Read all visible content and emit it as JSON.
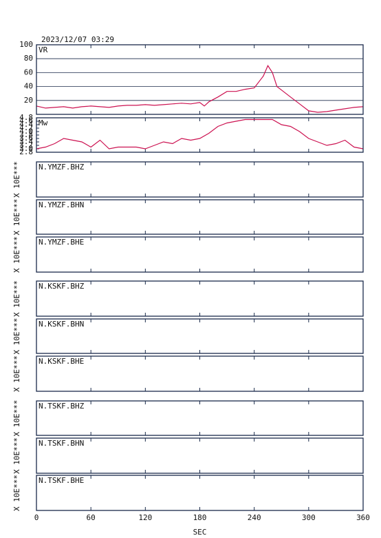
{
  "chart_data": [
    {
      "type": "line",
      "title": "2023/12/07 03:29",
      "label": "VR",
      "color": "#cc1150",
      "x": [
        0,
        10,
        20,
        30,
        40,
        50,
        60,
        70,
        80,
        90,
        100,
        110,
        120,
        130,
        140,
        150,
        160,
        170,
        180,
        185,
        190,
        200,
        210,
        220,
        230,
        240,
        250,
        255,
        260,
        265,
        270,
        280,
        290,
        300,
        310,
        320,
        330,
        340,
        350,
        360
      ],
      "values": [
        12,
        9,
        10,
        11,
        9,
        11,
        12,
        11,
        10,
        12,
        13,
        13,
        14,
        13,
        14,
        15,
        16,
        15,
        17,
        12,
        18,
        25,
        33,
        33,
        36,
        38,
        55,
        70,
        60,
        40,
        35,
        25,
        15,
        5,
        3,
        4,
        6,
        8,
        10,
        11
      ],
      "xlim": [
        0,
        360
      ],
      "xticks": [
        0,
        60,
        120,
        180,
        240,
        300,
        360
      ],
      "ylim": [
        0,
        100
      ],
      "yticks": [
        20,
        40,
        60,
        80,
        100
      ],
      "grid": true
    },
    {
      "type": "line",
      "label": "Mw",
      "color": "#cc1150",
      "x": [
        0,
        10,
        20,
        30,
        40,
        50,
        60,
        70,
        80,
        90,
        100,
        110,
        120,
        130,
        140,
        150,
        160,
        170,
        180,
        190,
        200,
        210,
        220,
        230,
        240,
        250,
        260,
        270,
        280,
        290,
        300,
        310,
        320,
        330,
        340,
        350,
        360
      ],
      "values": [
        3.0,
        3.1,
        3.3,
        3.6,
        3.5,
        3.4,
        3.1,
        3.5,
        3.0,
        3.1,
        3.1,
        3.1,
        3.0,
        3.2,
        3.4,
        3.3,
        3.6,
        3.5,
        3.6,
        3.9,
        4.3,
        4.5,
        4.6,
        4.7,
        4.7,
        4.7,
        4.7,
        4.4,
        4.3,
        4.0,
        3.6,
        3.4,
        3.2,
        3.3,
        3.5,
        3.1,
        3.0
      ],
      "xlim": [
        0,
        360
      ],
      "xticks": [
        0,
        60,
        120,
        180,
        240,
        300,
        360
      ],
      "ylim": [
        2.8,
        4.8
      ],
      "yticks": [
        {
          "value": 2.8,
          "label": "2.8"
        },
        {
          "value": 3,
          "label": "3.0"
        },
        3.2,
        3.4,
        3.6,
        3.8,
        {
          "value": 4,
          "label": "4.0"
        },
        4.2,
        4.4,
        4.6,
        4.8
      ]
    },
    {
      "type": "empty",
      "label": "N.YMZF.BHZ",
      "ylabel": "X 10E***",
      "xlim": [
        0,
        360
      ],
      "xticks": [
        0,
        60,
        120,
        180,
        240,
        300,
        360
      ]
    },
    {
      "type": "empty",
      "label": "N.YMZF.BHN",
      "ylabel": "X 10E***",
      "xlim": [
        0,
        360
      ],
      "xticks": [
        0,
        60,
        120,
        180,
        240,
        300,
        360
      ]
    },
    {
      "type": "empty",
      "label": "N.YMZF.BHE",
      "ylabel": "X 10E***",
      "xlim": [
        0,
        360
      ],
      "xticks": [
        0,
        60,
        120,
        180,
        240,
        300,
        360
      ]
    },
    {
      "type": "empty",
      "label": "N.KSKF.BHZ",
      "ylabel": "X 10E***",
      "xlim": [
        0,
        360
      ],
      "xticks": [
        0,
        60,
        120,
        180,
        240,
        300,
        360
      ]
    },
    {
      "type": "empty",
      "label": "N.KSKF.BHN",
      "ylabel": "X 10E***",
      "xlim": [
        0,
        360
      ],
      "xticks": [
        0,
        60,
        120,
        180,
        240,
        300,
        360
      ]
    },
    {
      "type": "empty",
      "label": "N.KSKF.BHE",
      "ylabel": "X 10E***",
      "xlim": [
        0,
        360
      ],
      "xticks": [
        0,
        60,
        120,
        180,
        240,
        300,
        360
      ]
    },
    {
      "type": "empty",
      "label": "N.TSKF.BHZ",
      "ylabel": "X 10E***",
      "xlim": [
        0,
        360
      ],
      "xticks": [
        0,
        60,
        120,
        180,
        240,
        300,
        360
      ]
    },
    {
      "type": "empty",
      "label": "N.TSKF.BHN",
      "ylabel": "X 10E***",
      "xlim": [
        0,
        360
      ],
      "xticks": [
        0,
        60,
        120,
        180,
        240,
        300,
        360
      ]
    },
    {
      "type": "empty",
      "label": "N.TSKF.BHE",
      "ylabel": "X 10E***",
      "xlabel": "SEC",
      "xlim": [
        0,
        360
      ],
      "xticks": [
        0,
        60,
        120,
        180,
        240,
        300,
        360
      ]
    }
  ]
}
